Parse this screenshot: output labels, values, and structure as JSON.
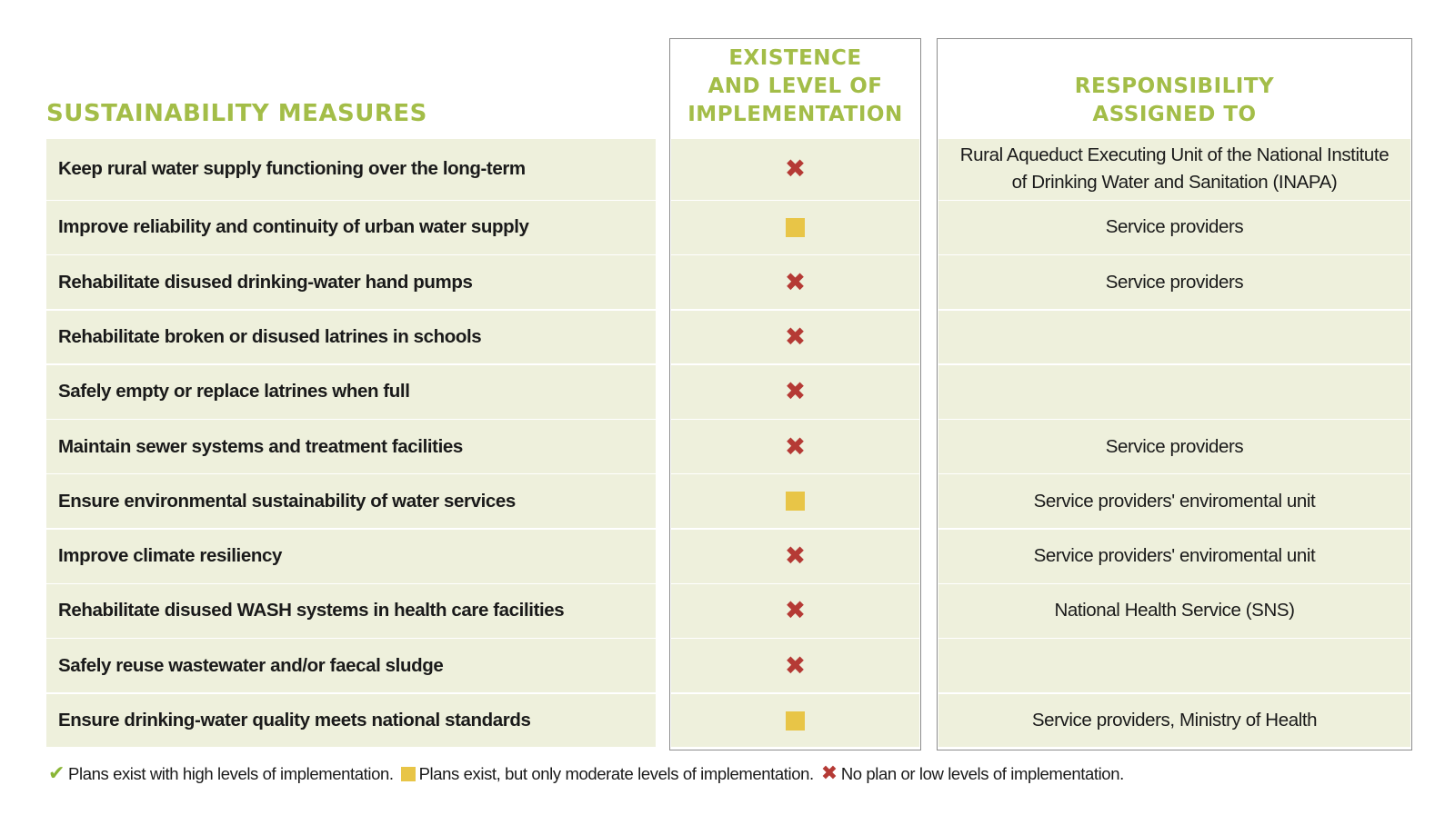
{
  "title": "SUSTAINABILITY MEASURES",
  "headers": {
    "existence": "EXISTENCE\nAND LEVEL OF\nIMPLEMENTATION",
    "responsibility": "RESPONSIBILITY\nASSIGNED TO"
  },
  "colors": {
    "accent": "#a3bd48",
    "row_bg": "#eef0dc",
    "cross": "#b53a35",
    "square": "#e8c547",
    "check": "#8ab636",
    "border": "#8c8c8c"
  },
  "status_symbols": {
    "cross": "✖",
    "check": "✔",
    "square": ""
  },
  "rows": [
    {
      "measure": "Keep rural water supply functioning over the long-term",
      "status": "cross",
      "responsibility": "Rural Aqueduct Executing Unit of the National Institute of Drinking Water and Sanitation (INAPA)"
    },
    {
      "measure": "Improve reliability and continuity of urban water supply",
      "status": "square",
      "responsibility": "Service providers"
    },
    {
      "measure": "Rehabilitate disused drinking-water hand pumps",
      "status": "cross",
      "responsibility": "Service providers"
    },
    {
      "measure": "Rehabilitate broken or disused latrines in schools",
      "status": "cross",
      "responsibility": ""
    },
    {
      "measure": "Safely empty or replace latrines when full",
      "status": "cross",
      "responsibility": ""
    },
    {
      "measure": "Maintain sewer systems and treatment facilities",
      "status": "cross",
      "responsibility": "Service providers"
    },
    {
      "measure": "Ensure environmental sustainability of water services",
      "status": "square",
      "responsibility": "Service providers' enviromental unit"
    },
    {
      "measure": "Improve climate resiliency",
      "status": "cross",
      "responsibility": "Service providers' enviromental unit"
    },
    {
      "measure": "Rehabilitate disused WASH systems in health care facilities",
      "status": "cross",
      "responsibility": "National Health Service (SNS)"
    },
    {
      "measure": "Safely reuse wastewater and/or faecal sludge",
      "status": "cross",
      "responsibility": ""
    },
    {
      "measure": "Ensure drinking-water quality meets national standards",
      "status": "square",
      "responsibility": "Service providers, Ministry of Health"
    }
  ],
  "legend": [
    {
      "status": "check",
      "text": "Plans exist with high levels of implementation."
    },
    {
      "status": "square",
      "text": "Plans exist, but only moderate levels of implementation."
    },
    {
      "status": "cross",
      "text": "No plan or low levels of implementation."
    }
  ]
}
